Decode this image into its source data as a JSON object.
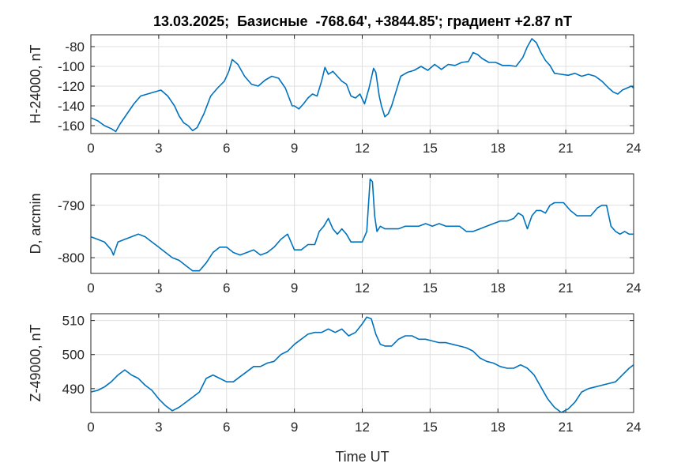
{
  "title": "13.03.2025;  Базисные  -768.64', +3844.85'; градиент +2.87 nT",
  "colors": {
    "line": "#0072BD",
    "grid": "#dfdfdf",
    "axis": "#262626",
    "background": "#ffffff"
  },
  "chart_data": [
    {
      "type": "line",
      "ylabel": "H-24000, nT",
      "xlim": [
        0,
        24
      ],
      "ylim": [
        -168,
        -68
      ],
      "xticks": [
        "0",
        "3",
        "6",
        "9",
        "12",
        "15",
        "18",
        "21",
        "24"
      ],
      "yticks": [
        "-160",
        "-140",
        "-120",
        "-100",
        "-80"
      ],
      "ytick_values": [
        -160,
        -140,
        -120,
        -100,
        -80
      ],
      "grid": true,
      "series": [
        {
          "x": [
            0,
            0.3,
            0.6,
            0.9,
            1.1,
            1.3,
            1.6,
            1.9,
            2.2,
            2.5,
            2.8,
            3.1,
            3.4,
            3.7,
            3.9,
            4.1,
            4.3,
            4.5,
            4.7,
            5.0,
            5.3,
            5.6,
            5.9,
            6.1,
            6.25,
            6.5,
            6.8,
            7.1,
            7.4,
            7.7,
            8.0,
            8.3,
            8.6,
            8.9,
            9.0,
            9.2,
            9.4,
            9.6,
            9.8,
            10.0,
            10.2,
            10.35,
            10.5,
            10.7,
            10.9,
            11.1,
            11.3,
            11.5,
            11.7,
            11.9,
            12.1,
            12.3,
            12.5,
            12.6,
            12.75,
            12.85,
            13.0,
            13.15,
            13.3,
            13.5,
            13.7,
            14.0,
            14.3,
            14.6,
            14.9,
            15.2,
            15.5,
            15.8,
            16.1,
            16.4,
            16.7,
            16.9,
            17.1,
            17.3,
            17.6,
            17.9,
            18.2,
            18.5,
            18.8,
            19.1,
            19.3,
            19.5,
            19.7,
            19.9,
            20.1,
            20.3,
            20.5,
            20.8,
            21.1,
            21.4,
            21.7,
            22.0,
            22.3,
            22.6,
            22.9,
            23.1,
            23.3,
            23.5,
            23.7,
            23.9,
            24.0
          ],
          "y": [
            -152,
            -155,
            -160,
            -163,
            -166,
            -158,
            -148,
            -138,
            -130,
            -128,
            -126,
            -124,
            -130,
            -140,
            -150,
            -157,
            -160,
            -165,
            -162,
            -148,
            -130,
            -122,
            -115,
            -105,
            -93,
            -98,
            -110,
            -118,
            -120,
            -114,
            -110,
            -112,
            -122,
            -140,
            -140,
            -143,
            -138,
            -132,
            -128,
            -130,
            -115,
            -101,
            -108,
            -105,
            -110,
            -115,
            -118,
            -130,
            -132,
            -128,
            -138,
            -122,
            -102,
            -106,
            -130,
            -140,
            -151,
            -148,
            -140,
            -125,
            -110,
            -106,
            -104,
            -100,
            -104,
            -98,
            -103,
            -98,
            -99,
            -96,
            -95,
            -86,
            -88,
            -92,
            -96,
            -96,
            -99,
            -99,
            -100,
            -91,
            -80,
            -72,
            -76,
            -86,
            -94,
            -99,
            -107,
            -108,
            -109,
            -107,
            -110,
            -108,
            -110,
            -115,
            -122,
            -126,
            -128,
            -124,
            -122,
            -120,
            -122
          ]
        }
      ]
    },
    {
      "type": "line",
      "ylabel": "D, arcmin",
      "xlim": [
        0,
        24
      ],
      "ylim": [
        -803,
        -784
      ],
      "xticks": [
        "0",
        "3",
        "6",
        "9",
        "12",
        "15",
        "18",
        "21",
        "24"
      ],
      "yticks": [
        "-800",
        "-790"
      ],
      "ytick_values": [
        -800,
        -790
      ],
      "grid": true,
      "series": [
        {
          "x": [
            0,
            0.3,
            0.6,
            0.9,
            1.0,
            1.2,
            1.5,
            1.8,
            2.1,
            2.4,
            2.7,
            3.0,
            3.3,
            3.6,
            3.9,
            4.2,
            4.5,
            4.8,
            5.1,
            5.4,
            5.7,
            6.0,
            6.3,
            6.6,
            6.9,
            7.2,
            7.5,
            7.8,
            8.1,
            8.4,
            8.7,
            9.0,
            9.3,
            9.6,
            9.9,
            10.1,
            10.3,
            10.5,
            10.7,
            10.9,
            11.1,
            11.3,
            11.5,
            11.8,
            12.0,
            12.2,
            12.35,
            12.45,
            12.55,
            12.65,
            12.8,
            13.0,
            13.3,
            13.6,
            13.9,
            14.2,
            14.5,
            14.8,
            15.1,
            15.4,
            15.7,
            16.0,
            16.3,
            16.6,
            16.9,
            17.2,
            17.5,
            17.8,
            18.1,
            18.4,
            18.7,
            18.9,
            19.1,
            19.3,
            19.5,
            19.7,
            19.9,
            20.1,
            20.3,
            20.5,
            20.7,
            20.9,
            21.2,
            21.5,
            21.8,
            22.1,
            22.4,
            22.6,
            22.8,
            23.0,
            23.2,
            23.4,
            23.6,
            23.8,
            24.0
          ],
          "y": [
            -796,
            -796.5,
            -797,
            -798.5,
            -799.5,
            -797,
            -796.5,
            -796,
            -795.5,
            -796,
            -797,
            -798,
            -799,
            -800,
            -800.5,
            -801.5,
            -802.5,
            -802.5,
            -801,
            -799,
            -798,
            -798,
            -799,
            -799.5,
            -799,
            -798.5,
            -799.5,
            -799,
            -798,
            -796.5,
            -795.5,
            -798.5,
            -798.5,
            -797.5,
            -797.5,
            -795,
            -794,
            -792.5,
            -794.5,
            -795.5,
            -794.5,
            -795.5,
            -797,
            -797,
            -797,
            -795,
            -785,
            -785.5,
            -792,
            -795,
            -794,
            -794.5,
            -794.5,
            -794.5,
            -794,
            -794,
            -794,
            -793.5,
            -794,
            -793.5,
            -794,
            -794,
            -794,
            -795,
            -795,
            -794.5,
            -794,
            -793.5,
            -793,
            -793,
            -792.5,
            -791.5,
            -792,
            -794.5,
            -792,
            -791,
            -791,
            -791.5,
            -790,
            -789.5,
            -789.5,
            -789.5,
            -791,
            -792,
            -792,
            -792,
            -790.5,
            -790,
            -790,
            -794,
            -795,
            -795.5,
            -795,
            -795.5,
            -795.5
          ]
        }
      ]
    },
    {
      "type": "line",
      "ylabel": "Z-49000, nT",
      "xlabel": "Time UT",
      "xlim": [
        0,
        24
      ],
      "ylim": [
        483,
        512
      ],
      "xticks": [
        "0",
        "3",
        "6",
        "9",
        "12",
        "15",
        "18",
        "21",
        "24"
      ],
      "yticks": [
        "490",
        "500",
        "510"
      ],
      "ytick_values": [
        490,
        500,
        510
      ],
      "grid": true,
      "series": [
        {
          "x": [
            0,
            0.3,
            0.6,
            0.9,
            1.2,
            1.5,
            1.8,
            2.1,
            2.4,
            2.7,
            3.0,
            3.3,
            3.6,
            3.9,
            4.2,
            4.5,
            4.8,
            5.1,
            5.4,
            5.7,
            6.0,
            6.3,
            6.6,
            6.9,
            7.2,
            7.5,
            7.8,
            8.1,
            8.4,
            8.7,
            9.0,
            9.3,
            9.6,
            9.9,
            10.2,
            10.5,
            10.8,
            11.1,
            11.4,
            11.7,
            12.0,
            12.2,
            12.4,
            12.6,
            12.8,
            13.0,
            13.3,
            13.6,
            13.9,
            14.2,
            14.5,
            14.8,
            15.1,
            15.4,
            15.7,
            16.0,
            16.3,
            16.6,
            16.9,
            17.2,
            17.5,
            17.8,
            18.1,
            18.4,
            18.7,
            19.0,
            19.3,
            19.6,
            19.9,
            20.2,
            20.5,
            20.8,
            21.1,
            21.4,
            21.7,
            22.0,
            22.3,
            22.6,
            22.9,
            23.2,
            23.5,
            23.8,
            24.0
          ],
          "y": [
            489,
            489.5,
            490.5,
            492,
            494,
            495.5,
            494,
            493,
            491,
            489.5,
            487,
            485,
            483.5,
            484.5,
            486,
            487.5,
            489,
            493,
            494,
            493,
            492,
            492,
            493.5,
            495,
            496.5,
            496.5,
            497.5,
            498,
            500,
            501,
            503,
            504.5,
            506,
            506.5,
            506.5,
            507.5,
            506.5,
            507.5,
            505.5,
            506.5,
            509,
            511,
            510.5,
            506,
            503,
            502.5,
            502.5,
            504.5,
            505.5,
            505.5,
            504.5,
            504.5,
            504,
            503.5,
            503.5,
            503,
            502.5,
            502,
            501,
            499,
            498,
            497.5,
            496.5,
            496,
            496,
            497,
            496,
            494,
            490.5,
            487,
            484.5,
            483,
            484,
            486,
            489,
            490,
            490.5,
            491,
            491.5,
            492,
            494,
            496,
            497
          ]
        }
      ]
    }
  ]
}
